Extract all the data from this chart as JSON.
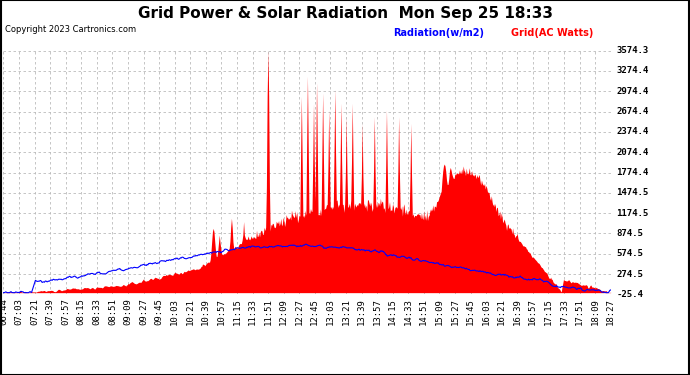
{
  "title": "Grid Power & Solar Radiation  Mon Sep 25 18:33",
  "copyright": "Copyright 2023 Cartronics.com",
  "legend_radiation": "Radiation(w/m2)",
  "legend_grid": "Grid(AC Watts)",
  "ylabel_right_values": [
    3574.3,
    3274.4,
    2974.4,
    2674.4,
    2374.4,
    2074.4,
    1774.4,
    1474.5,
    1174.5,
    874.5,
    574.5,
    274.5,
    -25.4
  ],
  "ymin": -25.4,
  "ymax": 3574.3,
  "background_color": "#ffffff",
  "plot_bg_color": "#ffffff",
  "grid_color": "#bbbbbb",
  "radiation_color": "#0000ff",
  "grid_power_color": "#ff0000",
  "title_fontsize": 11,
  "tick_fontsize": 6.5,
  "x_tick_labels": [
    "06:44",
    "07:03",
    "07:21",
    "07:39",
    "07:57",
    "08:15",
    "08:33",
    "08:51",
    "09:09",
    "09:27",
    "09:45",
    "10:03",
    "10:21",
    "10:39",
    "10:57",
    "11:15",
    "11:33",
    "11:51",
    "12:09",
    "12:27",
    "12:45",
    "13:03",
    "13:21",
    "13:39",
    "13:57",
    "14:15",
    "14:33",
    "14:51",
    "15:09",
    "15:27",
    "15:45",
    "16:03",
    "16:21",
    "16:39",
    "16:57",
    "17:15",
    "17:33",
    "17:51",
    "18:09",
    "18:27"
  ]
}
